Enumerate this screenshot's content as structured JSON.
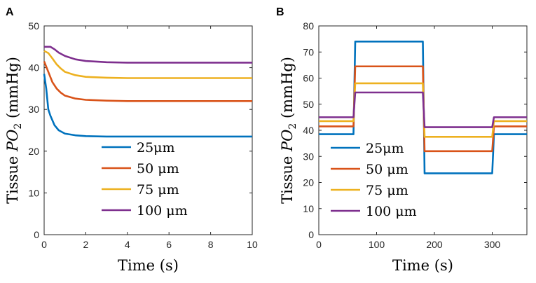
{
  "chart_data": [
    {
      "panel": "A",
      "type": "line",
      "xlabel": "Time (s)",
      "ylabel_prefix": "Tissue ",
      "ylabel_var": "PO",
      "ylabel_sub": "2",
      "ylabel_unit": " (mmHg)",
      "xlim": [
        0,
        10
      ],
      "ylim": [
        0,
        50
      ],
      "xticks": [
        0,
        2,
        4,
        6,
        8,
        10
      ],
      "yticks": [
        0,
        10,
        20,
        30,
        40,
        50
      ],
      "legend": "lower-right",
      "series": [
        {
          "name": "25μm",
          "color": "#0072BD",
          "points": [
            [
              0,
              38.5
            ],
            [
              0.1,
              35
            ],
            [
              0.2,
              30
            ],
            [
              0.3,
              28.5
            ],
            [
              0.5,
              26.2
            ],
            [
              0.7,
              25
            ],
            [
              1,
              24.2
            ],
            [
              1.5,
              23.8
            ],
            [
              2,
              23.6
            ],
            [
              3,
              23.5
            ],
            [
              4,
              23.5
            ],
            [
              6,
              23.5
            ],
            [
              8,
              23.5
            ],
            [
              10,
              23.5
            ]
          ]
        },
        {
          "name": "50 μm",
          "color": "#D95319",
          "points": [
            [
              0,
              41.5
            ],
            [
              0.2,
              39
            ],
            [
              0.4,
              36.5
            ],
            [
              0.6,
              35
            ],
            [
              0.8,
              34
            ],
            [
              1,
              33.3
            ],
            [
              1.5,
              32.6
            ],
            [
              2,
              32.3
            ],
            [
              3,
              32.1
            ],
            [
              4,
              32
            ],
            [
              6,
              32
            ],
            [
              8,
              32
            ],
            [
              10,
              32
            ]
          ]
        },
        {
          "name": "75 μm",
          "color": "#EDB120",
          "points": [
            [
              0,
              44
            ],
            [
              0.2,
              43.5
            ],
            [
              0.4,
              42.2
            ],
            [
              0.6,
              40.8
            ],
            [
              0.8,
              39.8
            ],
            [
              1,
              39
            ],
            [
              1.5,
              38.2
            ],
            [
              2,
              37.8
            ],
            [
              3,
              37.6
            ],
            [
              4,
              37.5
            ],
            [
              6,
              37.5
            ],
            [
              8,
              37.5
            ],
            [
              10,
              37.5
            ]
          ]
        },
        {
          "name": "100 μm",
          "color": "#7E2F8E",
          "points": [
            [
              0,
              45
            ],
            [
              0.3,
              45
            ],
            [
              0.5,
              44.4
            ],
            [
              0.7,
              43.6
            ],
            [
              1,
              42.8
            ],
            [
              1.5,
              42
            ],
            [
              2,
              41.6
            ],
            [
              3,
              41.3
            ],
            [
              4,
              41.2
            ],
            [
              6,
              41.2
            ],
            [
              8,
              41.2
            ],
            [
              10,
              41.2
            ]
          ]
        }
      ]
    },
    {
      "panel": "B",
      "type": "line",
      "xlabel": "Time (s)",
      "ylabel_prefix": "Tissue ",
      "ylabel_var": "PO",
      "ylabel_sub": "2",
      "ylabel_unit": " (mmHg)",
      "xlim": [
        0,
        360
      ],
      "ylim": [
        0,
        80
      ],
      "xticks": [
        0,
        100,
        200,
        300
      ],
      "yticks": [
        0,
        10,
        20,
        30,
        40,
        50,
        60,
        70,
        80
      ],
      "legend": "lower-left",
      "series": [
        {
          "name": "25μm",
          "color": "#0072BD",
          "points": [
            [
              0,
              38.5
            ],
            [
              60,
              38.5
            ],
            [
              63,
              74
            ],
            [
              180,
              74
            ],
            [
              183,
              23.5
            ],
            [
              300,
              23.5
            ],
            [
              303,
              38.5
            ],
            [
              360,
              38.5
            ]
          ]
        },
        {
          "name": "50 μm",
          "color": "#D95319",
          "points": [
            [
              0,
              41.5
            ],
            [
              60,
              41.5
            ],
            [
              63,
              64.5
            ],
            [
              180,
              64.5
            ],
            [
              183,
              32
            ],
            [
              300,
              32
            ],
            [
              303,
              41.5
            ],
            [
              360,
              41.5
            ]
          ]
        },
        {
          "name": "75 μm",
          "color": "#EDB120",
          "points": [
            [
              0,
              43.5
            ],
            [
              60,
              43.5
            ],
            [
              63,
              58
            ],
            [
              180,
              58
            ],
            [
              183,
              37.5
            ],
            [
              300,
              37.5
            ],
            [
              303,
              43.5
            ],
            [
              360,
              43.5
            ]
          ]
        },
        {
          "name": "100 μm",
          "color": "#7E2F8E",
          "points": [
            [
              0,
              45
            ],
            [
              60,
              45
            ],
            [
              63,
              54.5
            ],
            [
              180,
              54.5
            ],
            [
              183,
              41.2
            ],
            [
              300,
              41.2
            ],
            [
              303,
              45
            ],
            [
              360,
              45
            ]
          ]
        }
      ]
    }
  ]
}
